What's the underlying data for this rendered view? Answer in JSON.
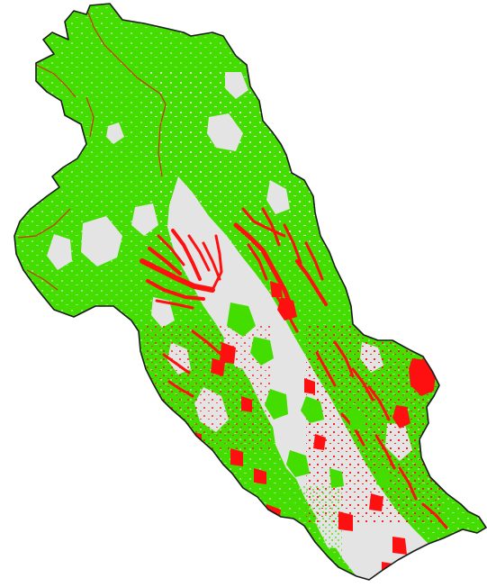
{
  "map": {
    "type": "land-cover-classification",
    "colors": {
      "background": "#ffffff",
      "vegetation": "#44dd00",
      "non_vegetated": "#e4e4e4",
      "change_areas": "#ff1010",
      "boundary": "#1a1a1a",
      "subdivision_lines": "#d03010"
    }
  }
}
